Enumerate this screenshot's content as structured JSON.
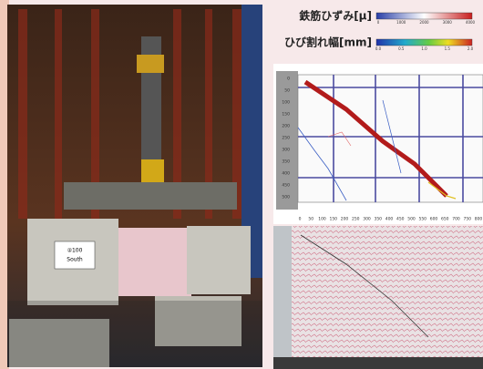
{
  "legend": {
    "strain": {
      "label": "鉄筋ひずみ[μ]",
      "ticks": [
        "0",
        "1000",
        "2000",
        "3000",
        "4000"
      ]
    },
    "crack": {
      "label": "ひび割れ幅[mm]",
      "ticks": [
        "0.0",
        "0.5",
        "1.0",
        "1.5",
        "2.0"
      ]
    }
  },
  "specimen_label": {
    "line1": "②100",
    "line2": "South"
  },
  "diagram": {
    "y_ticks": [
      "0",
      "50",
      "100",
      "150",
      "200",
      "250",
      "300",
      "350",
      "400",
      "450",
      "500"
    ],
    "x_ticks": [
      "0",
      "50",
      "100",
      "150",
      "200",
      "250",
      "300",
      "350",
      "400",
      "450",
      "500",
      "550",
      "600",
      "650",
      "700",
      "750",
      "800"
    ]
  }
}
